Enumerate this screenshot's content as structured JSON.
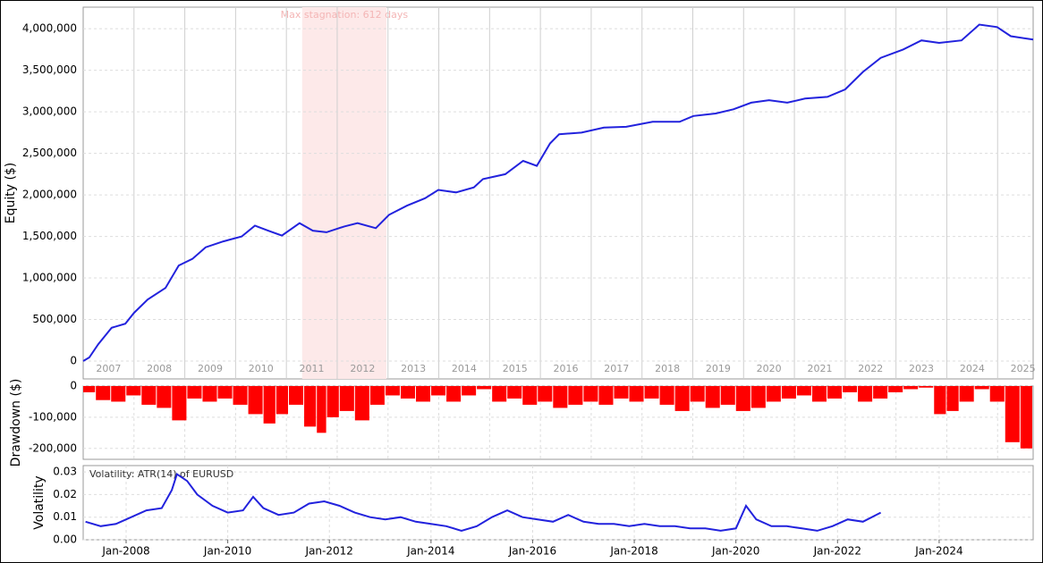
{
  "chart_data": [
    {
      "type": "line",
      "ylabel": "Equity ($)",
      "color": "#2222dd",
      "xlim": [
        2007.0,
        2025.7
      ],
      "ylim": [
        -215000,
        4260000
      ],
      "yticks": [
        0,
        {
          "value": 500000,
          "label": "500,000"
        },
        {
          "value": 1000000,
          "label": "1,000,000"
        },
        {
          "value": 1500000,
          "label": "1,500,000"
        },
        {
          "value": 2000000,
          "label": "2,000,000"
        },
        {
          "value": 2500000,
          "label": "2,500,000"
        },
        {
          "value": 3000000,
          "label": "3,000,000"
        },
        {
          "value": 3500000,
          "label": "3,500,000"
        },
        {
          "value": 4000000,
          "label": "4,000,000"
        }
      ],
      "xticks": [
        {
          "value": 2007.5,
          "label": "2007"
        },
        {
          "value": 2008.5,
          "label": "2008"
        },
        {
          "value": 2009.5,
          "label": "2009"
        },
        {
          "value": 2010.5,
          "label": "2010"
        },
        {
          "value": 2011.5,
          "label": "2011"
        },
        {
          "value": 2012.5,
          "label": "2012"
        },
        {
          "value": 2013.5,
          "label": "2013"
        },
        {
          "value": 2014.5,
          "label": "2014"
        },
        {
          "value": 2015.5,
          "label": "2015"
        },
        {
          "value": 2016.5,
          "label": "2016"
        },
        {
          "value": 2017.5,
          "label": "2017"
        },
        {
          "value": 2018.5,
          "label": "2018"
        },
        {
          "value": 2019.5,
          "label": "2019"
        },
        {
          "value": 2020.5,
          "label": "2020"
        },
        {
          "value": 2021.5,
          "label": "2021"
        },
        {
          "value": 2022.5,
          "label": "2022"
        },
        {
          "value": 2023.5,
          "label": "2023"
        },
        {
          "value": 2024.5,
          "label": "2024"
        },
        {
          "value": 2025.5,
          "label": "2025"
        }
      ],
      "xgrid": [
        2008,
        2009,
        2010,
        2011,
        2012,
        2013,
        2014,
        2015,
        2016,
        2017,
        2018,
        2019,
        2020,
        2021,
        2022,
        2023,
        2024,
        2025
      ],
      "stagnation": {
        "start": 2011.31,
        "end": 2012.97,
        "label": "Max stagnation: 612 days"
      },
      "x": [
        2007.0,
        2007.12,
        2007.3,
        2007.56,
        2007.83,
        2008.0,
        2008.27,
        2008.62,
        2008.88,
        2009.15,
        2009.41,
        2009.76,
        2010.12,
        2010.38,
        2010.64,
        2010.91,
        2011.26,
        2011.52,
        2011.79,
        2012.14,
        2012.4,
        2012.76,
        2013.02,
        2013.37,
        2013.73,
        2013.99,
        2014.34,
        2014.69,
        2014.87,
        2015.31,
        2015.66,
        2015.93,
        2016.19,
        2016.37,
        2016.81,
        2017.25,
        2017.69,
        2018.21,
        2018.74,
        2019.01,
        2019.45,
        2019.8,
        2020.15,
        2020.5,
        2020.86,
        2021.21,
        2021.65,
        2022.0,
        2022.35,
        2022.7,
        2023.14,
        2023.5,
        2023.85,
        2024.29,
        2024.64,
        2024.99,
        2025.26,
        2025.7
      ],
      "values": [
        0,
        43000,
        204000,
        400000,
        450000,
        580000,
        740000,
        880000,
        1150000,
        1230000,
        1370000,
        1440000,
        1500000,
        1630000,
        1570000,
        1510000,
        1660000,
        1570000,
        1550000,
        1620000,
        1660000,
        1600000,
        1760000,
        1870000,
        1960000,
        2060000,
        2030000,
        2090000,
        2190000,
        2250000,
        2410000,
        2350000,
        2620000,
        2730000,
        2750000,
        2810000,
        2820000,
        2880000,
        2880000,
        2950000,
        2980000,
        3030000,
        3110000,
        3140000,
        3110000,
        3160000,
        3180000,
        3270000,
        3480000,
        3650000,
        3750000,
        3860000,
        3830000,
        3860000,
        4050000,
        4020000,
        3910000,
        3870000
      ]
    },
    {
      "type": "bar",
      "ylabel": "Drawdown ($)",
      "color": "#ff0000",
      "xlim": [
        2007.0,
        2025.7
      ],
      "ylim": [
        -235000,
        0
      ],
      "yticks": [
        0,
        {
          "value": -100000,
          "label": "-100,000"
        },
        {
          "value": -200000,
          "label": "-200,000"
        }
      ],
      "xgrid": [
        2008,
        2009,
        2010,
        2011,
        2012,
        2013,
        2014,
        2015,
        2016,
        2017,
        2018,
        2019,
        2020,
        2021,
        2022,
        2023,
        2024,
        2025
      ],
      "x": [
        2007.1,
        2007.4,
        2007.7,
        2008.0,
        2008.3,
        2008.6,
        2008.9,
        2009.2,
        2009.5,
        2009.8,
        2010.1,
        2010.4,
        2010.7,
        2010.9,
        2011.2,
        2011.5,
        2011.7,
        2011.9,
        2012.2,
        2012.5,
        2012.8,
        2013.1,
        2013.4,
        2013.7,
        2014.0,
        2014.3,
        2014.6,
        2014.9,
        2015.2,
        2015.5,
        2015.8,
        2016.1,
        2016.4,
        2016.7,
        2017.0,
        2017.3,
        2017.6,
        2017.9,
        2018.2,
        2018.5,
        2018.8,
        2019.1,
        2019.4,
        2019.7,
        2020.0,
        2020.3,
        2020.6,
        2020.9,
        2021.2,
        2021.5,
        2021.8,
        2022.1,
        2022.4,
        2022.7,
        2023.0,
        2023.3,
        2023.6,
        2023.9,
        2024.1,
        2024.4,
        2024.7,
        2025.0,
        2025.3,
        2025.6
      ],
      "values": [
        -20000,
        -45000,
        -50000,
        -30000,
        -60000,
        -70000,
        -110000,
        -40000,
        -50000,
        -40000,
        -60000,
        -90000,
        -120000,
        -90000,
        -60000,
        -130000,
        -150000,
        -100000,
        -80000,
        -110000,
        -60000,
        -30000,
        -40000,
        -50000,
        -30000,
        -50000,
        -30000,
        -10000,
        -50000,
        -40000,
        -60000,
        -50000,
        -70000,
        -60000,
        -50000,
        -60000,
        -40000,
        -50000,
        -40000,
        -60000,
        -80000,
        -50000,
        -70000,
        -60000,
        -80000,
        -70000,
        -50000,
        -40000,
        -30000,
        -50000,
        -40000,
        -20000,
        -50000,
        -40000,
        -20000,
        -10000,
        -5000,
        -90000,
        -80000,
        -50000,
        -10000,
        -50000,
        -180000,
        -200000
      ]
    },
    {
      "type": "line",
      "ylabel": "Volatility",
      "label": "Volatility: ATR(14) of EURUSD",
      "color": "#2222dd",
      "xlim": [
        2007.155,
        2025.85
      ],
      "ylim": [
        0,
        0.0328
      ],
      "yticks": [
        {
          "value": 0,
          "label": "0.00"
        },
        {
          "value": 0.01,
          "label": "0.01"
        },
        {
          "value": 0.02,
          "label": "0.02"
        },
        {
          "value": 0.03,
          "label": "0.03"
        }
      ],
      "xticks": [
        {
          "value": 2008,
          "label": "Jan-2008"
        },
        {
          "value": 2010,
          "label": "Jan-2010"
        },
        {
          "value": 2012,
          "label": "Jan-2012"
        },
        {
          "value": 2014,
          "label": "Jan-2014"
        },
        {
          "value": 2016,
          "label": "Jan-2016"
        },
        {
          "value": 2018,
          "label": "Jan-2018"
        },
        {
          "value": 2020,
          "label": "Jan-2020"
        },
        {
          "value": 2022,
          "label": "Jan-2022"
        },
        {
          "value": 2024,
          "label": "Jan-2024"
        }
      ],
      "x": [
        2007.2,
        2007.5,
        2007.8,
        2008.1,
        2008.4,
        2008.7,
        2008.9,
        2009.0,
        2009.2,
        2009.4,
        2009.7,
        2010.0,
        2010.3,
        2010.5,
        2010.7,
        2011.0,
        2011.3,
        2011.6,
        2011.9,
        2012.2,
        2012.5,
        2012.8,
        2013.1,
        2013.4,
        2013.7,
        2014.0,
        2014.3,
        2014.6,
        2014.9,
        2015.2,
        2015.5,
        2015.8,
        2016.1,
        2016.4,
        2016.7,
        2017.0,
        2017.3,
        2017.6,
        2017.9,
        2018.2,
        2018.5,
        2018.8,
        2019.1,
        2019.4,
        2019.7,
        2020.0,
        2020.2,
        2020.4,
        2020.7,
        2021.0,
        2021.3,
        2021.6,
        2021.9,
        2022.2,
        2022.5,
        2022.85
      ],
      "values": [
        0.008,
        0.006,
        0.007,
        0.01,
        0.013,
        0.014,
        0.022,
        0.029,
        0.026,
        0.02,
        0.015,
        0.012,
        0.013,
        0.019,
        0.014,
        0.011,
        0.012,
        0.016,
        0.017,
        0.015,
        0.012,
        0.01,
        0.009,
        0.01,
        0.008,
        0.007,
        0.006,
        0.004,
        0.006,
        0.01,
        0.013,
        0.01,
        0.009,
        0.008,
        0.011,
        0.008,
        0.007,
        0.007,
        0.006,
        0.007,
        0.006,
        0.006,
        0.005,
        0.005,
        0.004,
        0.005,
        0.015,
        0.009,
        0.006,
        0.006,
        0.005,
        0.004,
        0.006,
        0.009,
        0.008,
        0.012
      ]
    }
  ]
}
